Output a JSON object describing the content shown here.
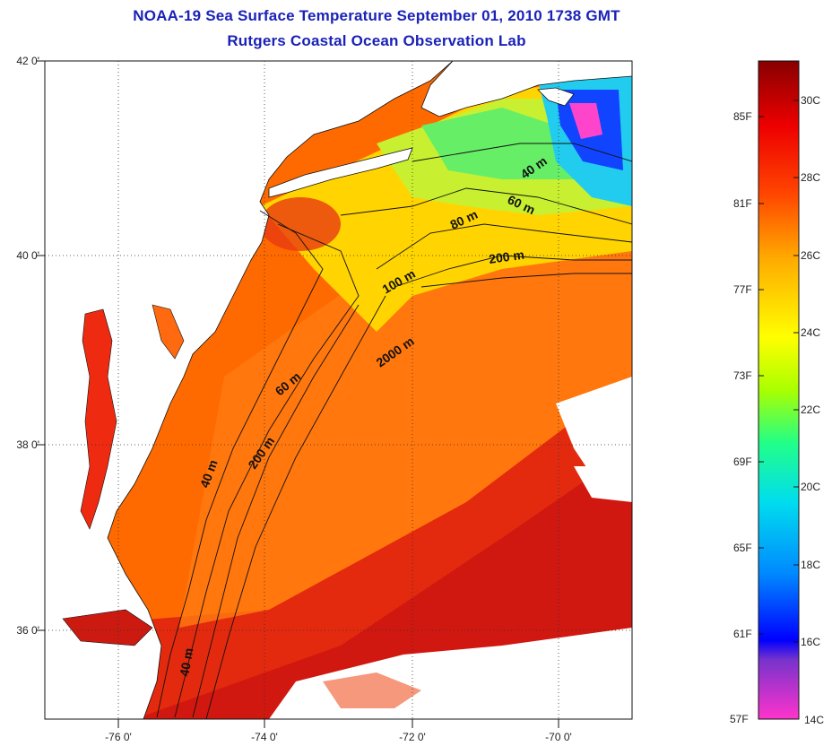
{
  "title": {
    "line1": "NOAA-19 Sea Surface Temperature September 01, 2010 1738 GMT",
    "line2": "Rutgers Coastal Ocean Observation Lab"
  },
  "map": {
    "lat_labels": [
      {
        "lat": 42,
        "label": "42 0'"
      },
      {
        "lat": 40,
        "label": "40 0'"
      },
      {
        "lat": 38,
        "label": "38 0'"
      },
      {
        "lat": 36,
        "label": "36 0'"
      }
    ],
    "lon_labels": [
      {
        "lon": -76,
        "label": "-76 0'"
      },
      {
        "lon": -74,
        "label": "-74 0'"
      },
      {
        "lon": -72,
        "label": "-72 0'"
      },
      {
        "lon": -70,
        "label": "-70 0'"
      }
    ],
    "extent": {
      "lon_min": -77.0,
      "lon_max": -69.0,
      "lat_min": 35.0,
      "lat_max": 42.0
    },
    "isobath_labels": [
      "40 m",
      "60 m",
      "80 m",
      "200 m",
      "100 m",
      "2000 m",
      "60 m",
      "200 m",
      "40 m",
      "40 m"
    ]
  },
  "colorbar": {
    "fahrenheit": [
      "85F",
      "81F",
      "77F",
      "73F",
      "69F",
      "65F",
      "61F",
      "57F"
    ],
    "celsius": [
      "30C",
      "28C",
      "26C",
      "24C",
      "22C",
      "20C",
      "18C",
      "16C",
      "14C"
    ],
    "colors": [
      "#ff33cc",
      "#7733cc",
      "#0000ff",
      "#0088ff",
      "#00ddee",
      "#22ff88",
      "#aaff00",
      "#ffff00",
      "#ffaa00",
      "#ff4400",
      "#ee0000",
      "#880000"
    ]
  },
  "colors": {
    "title": "#1a22b8",
    "land": "#ffffff",
    "ocean_warm": "#ff4a00",
    "ocean_hot": "#dd1010",
    "shelf": "#ffcc00",
    "cold": "#1133ff"
  }
}
